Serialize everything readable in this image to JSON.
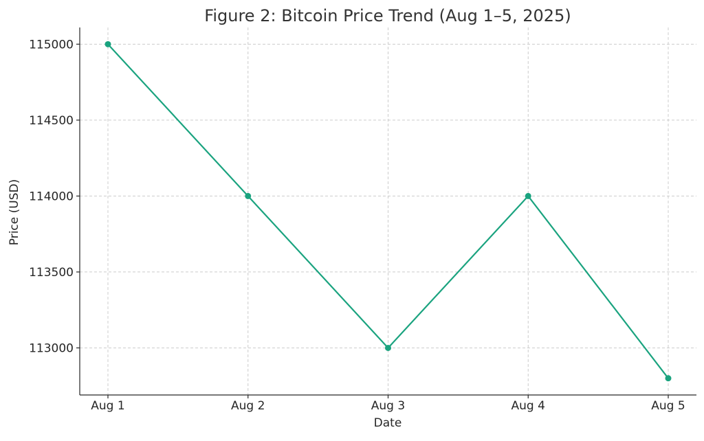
{
  "chart_data": {
    "type": "line",
    "title": "Figure 2: Bitcoin Price Trend (Aug 1–5, 2025)",
    "xlabel": "Date",
    "ylabel": "Price (USD)",
    "categories": [
      "Aug 1",
      "Aug 2",
      "Aug 3",
      "Aug 4",
      "Aug 5"
    ],
    "series": [
      {
        "values": [
          115000,
          114000,
          113000,
          114000,
          112800
        ]
      }
    ],
    "yticks": [
      113000,
      113500,
      114000,
      114500,
      115000
    ],
    "ylim": [
      112690,
      115110
    ],
    "grid": true,
    "colors": {
      "line": "#1aa37f",
      "grid": "#cccccc",
      "axis": "#262626"
    }
  }
}
